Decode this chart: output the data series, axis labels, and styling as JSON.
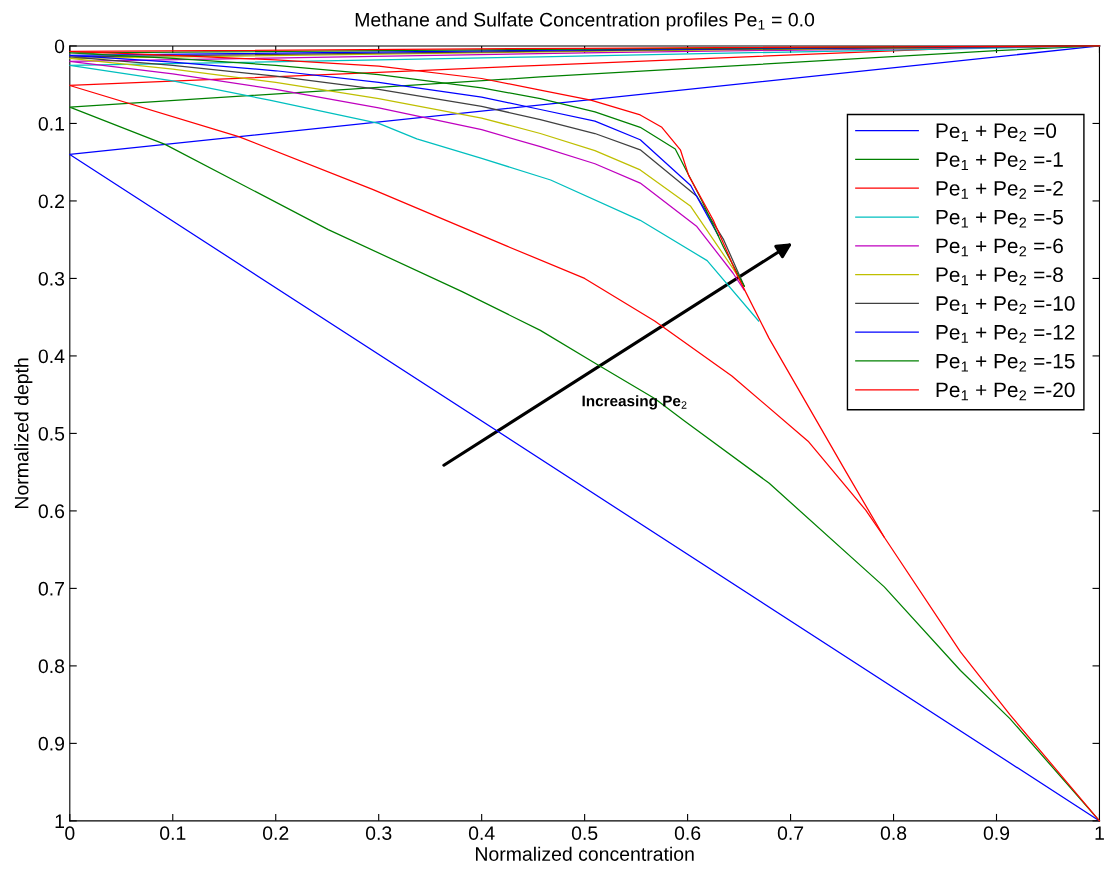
{
  "chart_data": {
    "type": "line",
    "title": "Methane and Sulfate Concentration profiles Pe$_{1}$ = 0.0",
    "xlabel": "Normalized concentration",
    "ylabel": "Normalized depth",
    "xlim": [
      0,
      1
    ],
    "ylim": [
      1,
      0
    ],
    "xticks": [
      0,
      0.1,
      0.2,
      0.3,
      0.4,
      0.5,
      0.6,
      0.7,
      0.8,
      0.9,
      1
    ],
    "yticks": [
      0,
      0.1,
      0.2,
      0.3,
      0.4,
      0.5,
      0.6,
      0.7,
      0.8,
      0.9,
      1
    ],
    "grid": false,
    "legend": "top right",
    "marker": "none",
    "line_style": "solid",
    "annotations": [
      "Increasing Pe$_{2}$"
    ],
    "series": [
      {
        "name": "Pe$_{1}$ + Pe$_{2}$ =0",
        "color": "#0000ff",
        "x": [
          1,
          0,
          1
        ],
        "values": [
          0,
          0.14,
          1
        ]
      },
      {
        "name": "Pe$_{1}$ + Pe$_{2}$ =-1",
        "color": "#008000",
        "x": [
          1,
          0.9,
          0.457,
          0,
          0.0925,
          0.251,
          0.381,
          0.457,
          0.511,
          0.568,
          0.597,
          0.679,
          0.791,
          0.865,
          0.913,
          1
        ],
        "values": [
          0,
          0.006,
          0.04,
          0.079,
          0.127,
          0.237,
          0.317,
          0.367,
          0.41,
          0.455,
          0.484,
          0.564,
          0.698,
          0.806,
          0.868,
          1
        ]
      },
      {
        "name": "Pe$_{1}$ + Pe$_{2}$ =-2",
        "color": "#ff0000",
        "x": [
          1,
          0.877,
          0.457,
          0.3,
          0,
          0.164,
          0.294,
          0.424,
          0.5,
          0.568,
          0.643,
          0.717,
          0.773,
          0.791
        ],
        "values": [
          0,
          0.002,
          0.025,
          0.034,
          0.051,
          0.117,
          0.185,
          0.258,
          0.3,
          0.355,
          0.426,
          0.51,
          0.599,
          0.634
        ]
      },
      {
        "name": "Pe$_{1}$ + Pe$_{2}$ =-5",
        "color": "#00bfbf",
        "x": [
          1,
          0.457,
          0.3,
          0,
          0.1,
          0.194,
          0.3,
          0.337,
          0.4,
          0.467,
          0.554,
          0.619,
          0.669
        ],
        "values": [
          0,
          0.014,
          0.018,
          0.025,
          0.045,
          0.07,
          0.1,
          0.12,
          0.145,
          0.173,
          0.225,
          0.277,
          0.355
        ]
      },
      {
        "name": "Pe$_{1}$ + Pe$_{2}$ =-6",
        "color": "#bf00bf",
        "x": [
          1,
          0.5,
          0,
          0.1,
          0.2,
          0.3,
          0.4,
          0.457,
          0.51,
          0.554,
          0.609,
          0.644,
          0.655
        ],
        "values": [
          0,
          0.009,
          0.02,
          0.036,
          0.056,
          0.08,
          0.108,
          0.13,
          0.152,
          0.177,
          0.233,
          0.293,
          0.315
        ]
      },
      {
        "name": "Pe$_{1}$ + Pe$_{2}$ =-8",
        "color": "#bfbf00",
        "x": [
          1,
          0.5,
          0,
          0.1,
          0.2,
          0.3,
          0.4,
          0.457,
          0.51,
          0.554,
          0.603,
          0.644,
          0.655
        ],
        "values": [
          0,
          0.007,
          0.016,
          0.03,
          0.047,
          0.068,
          0.093,
          0.113,
          0.135,
          0.16,
          0.207,
          0.287,
          0.31
        ]
      },
      {
        "name": "Pe$_{1}$ + Pe$_{2}$ =-10",
        "color": "#404040",
        "x": [
          1,
          0.5,
          0,
          0.1,
          0.2,
          0.3,
          0.4,
          0.457,
          0.51,
          0.554,
          0.609,
          0.635,
          0.655
        ],
        "values": [
          0,
          0.006,
          0.014,
          0.025,
          0.039,
          0.056,
          0.078,
          0.095,
          0.113,
          0.134,
          0.194,
          0.25,
          0.31
        ]
      },
      {
        "name": "Pe$_{1}$ + Pe$_{2}$ =-12",
        "color": "#0000ff",
        "x": [
          1,
          0.5,
          0,
          0.1,
          0.2,
          0.3,
          0.4,
          0.457,
          0.51,
          0.554,
          0.603,
          0.63
        ],
        "values": [
          0,
          0.005,
          0.012,
          0.021,
          0.032,
          0.047,
          0.066,
          0.082,
          0.097,
          0.121,
          0.18,
          0.245
        ]
      },
      {
        "name": "Pe$_{1}$ + Pe$_{2}$ =-15",
        "color": "#008000",
        "x": [
          1,
          0.5,
          0,
          0.1,
          0.2,
          0.3,
          0.4,
          0.457,
          0.51,
          0.554,
          0.588,
          0.614,
          0.635,
          0.655
        ],
        "values": [
          0,
          0.004,
          0.009,
          0.016,
          0.025,
          0.037,
          0.054,
          0.068,
          0.085,
          0.105,
          0.133,
          0.2,
          0.26,
          0.31
        ]
      },
      {
        "name": "Pe$_{1}$ + Pe$_{2}$ =-20",
        "color": "#ff0000",
        "x": [
          1,
          0.5,
          0,
          0.1,
          0.2,
          0.3,
          0.4,
          0.457,
          0.506,
          0.554,
          0.575,
          0.593,
          0.601,
          0.625,
          0.649,
          0.679,
          0.754,
          0.791,
          0.865,
          0.913,
          1
        ],
        "values": [
          0,
          0.003,
          0.007,
          0.012,
          0.018,
          0.026,
          0.042,
          0.057,
          0.07,
          0.089,
          0.105,
          0.134,
          0.167,
          0.225,
          0.298,
          0.377,
          0.55,
          0.634,
          0.782,
          0.863,
          1
        ]
      }
    ]
  }
}
